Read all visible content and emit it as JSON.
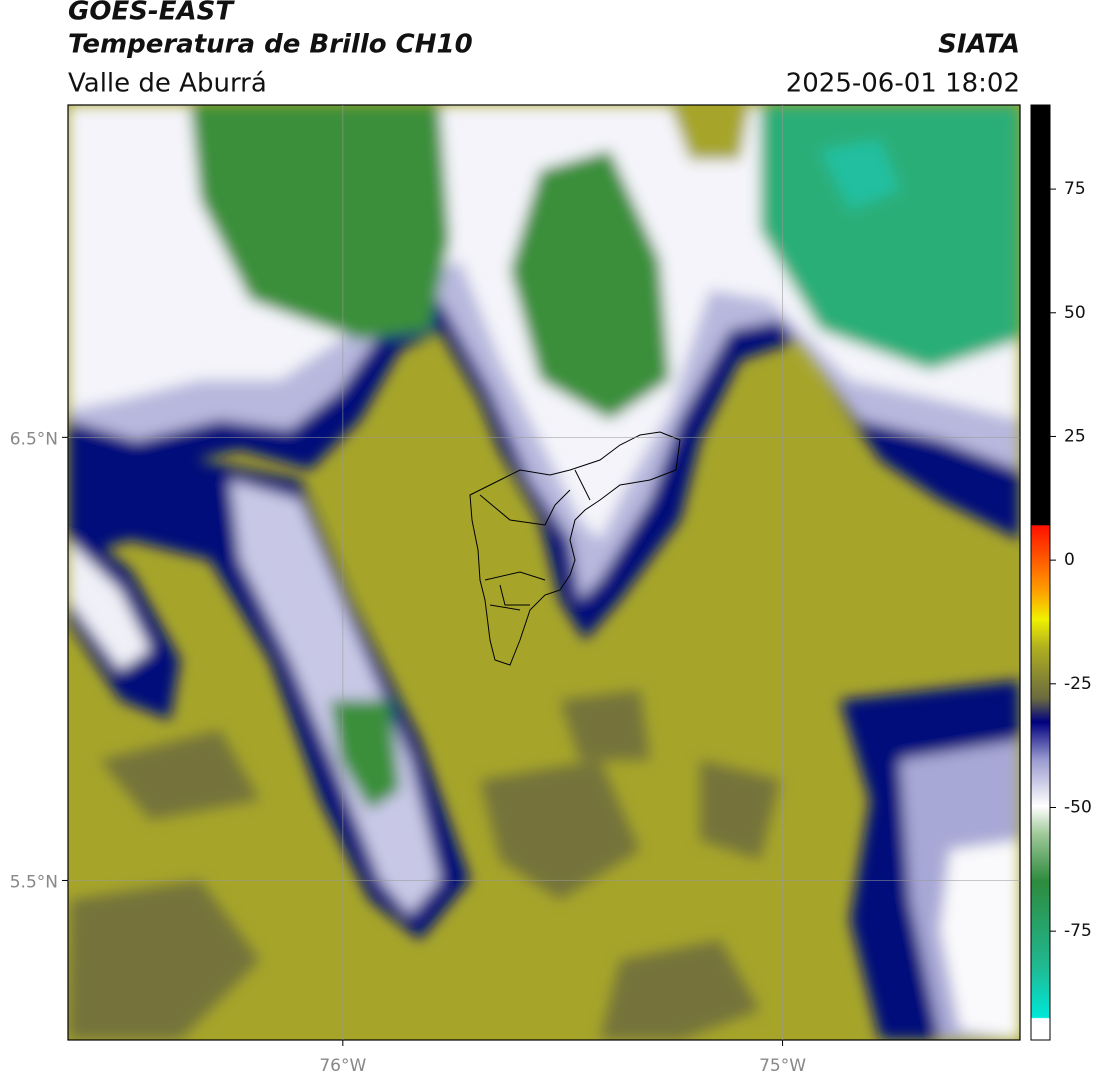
{
  "header": {
    "title": "GOES-EAST",
    "subtitle": "Temperatura de Brillo CH10",
    "region": "Valle de Aburrá",
    "agency": "SIATA",
    "datetime": "2025-06-01 18:02"
  },
  "map": {
    "lonlim": [
      -76.625,
      -74.46
    ],
    "latlim": [
      5.14,
      7.25
    ],
    "lat_ticks": [
      {
        "value": 6.5,
        "label": "6.5°N"
      },
      {
        "value": 5.5,
        "label": "5.5°N"
      }
    ],
    "lon_ticks": [
      {
        "value": -76,
        "label": "76°W"
      },
      {
        "value": -75,
        "label": "75°W"
      }
    ]
  },
  "colorbar": {
    "lim": [
      -97,
      92
    ],
    "ticks": [
      75,
      50,
      25,
      0,
      -25,
      -50,
      -75
    ]
  }
}
